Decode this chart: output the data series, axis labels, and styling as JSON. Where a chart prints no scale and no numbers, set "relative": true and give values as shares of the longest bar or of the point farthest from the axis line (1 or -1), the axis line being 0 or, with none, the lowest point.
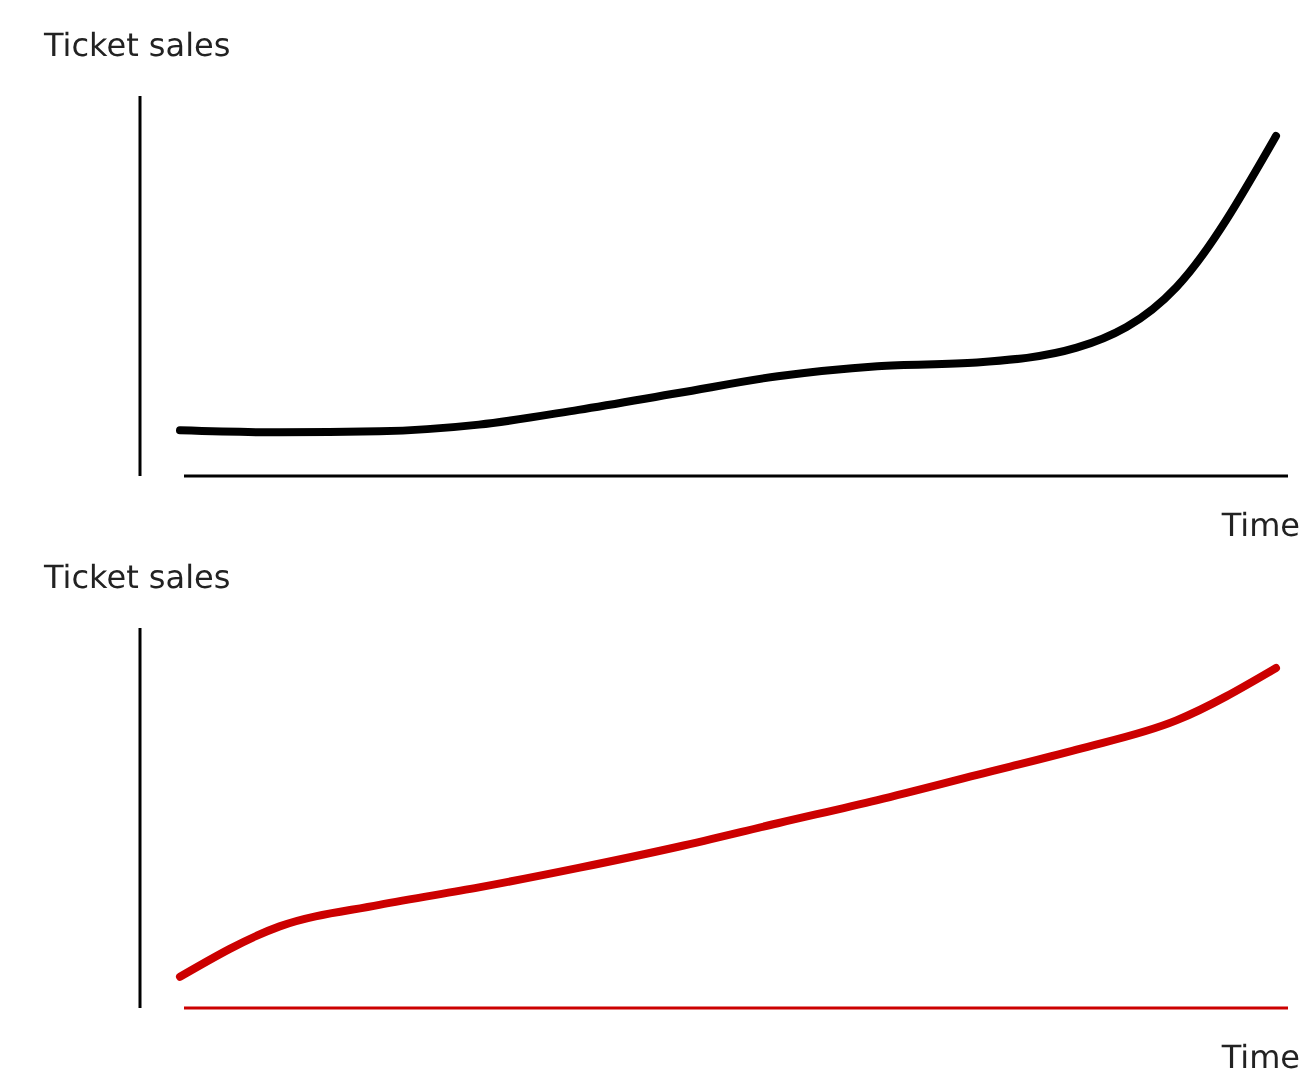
{
  "chart_data": [
    {
      "type": "line",
      "relative": true,
      "xlabel": "Time",
      "ylabel": "Ticket sales",
      "categories": [
        null,
        null,
        null,
        null,
        null,
        null,
        null,
        null,
        null,
        null,
        null,
        null
      ],
      "series": [
        {
          "color": "#000000",
          "values": [
            0.124,
            0.118,
            0.121,
            0.141,
            0.185,
            0.235,
            0.285,
            0.315,
            0.326,
            0.37,
            0.55,
            1
          ]
        }
      ]
    },
    {
      "type": "line",
      "relative": true,
      "xlabel": "Time",
      "ylabel": "Ticket sales",
      "categories": [
        null,
        null,
        null,
        null,
        null,
        null,
        null,
        null,
        null,
        null,
        null,
        null
      ],
      "series": [
        {
          "color": "#cc0000",
          "values": [
            0.081,
            0.231,
            0.295,
            0.347,
            0.405,
            0.468,
            0.538,
            0.607,
            0.682,
            0.757,
            0.844,
            1
          ]
        }
      ]
    }
  ]
}
